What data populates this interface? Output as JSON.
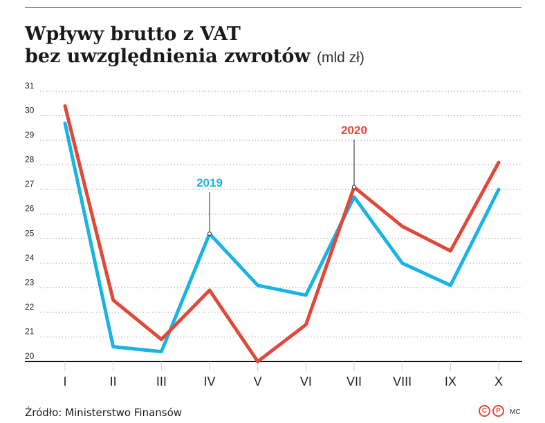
{
  "title": {
    "line1": "Wpływy brutto z VAT",
    "line2": "bez uwzględnienia zwrotów",
    "unit": "(mld zł)"
  },
  "source": "Źródło: Ministerstwo Finansów",
  "logos": {
    "copyright": "C",
    "p": "P"
  },
  "author": "MC",
  "chart_data": {
    "type": "line",
    "categories": [
      "I",
      "II",
      "III",
      "IV",
      "V",
      "VI",
      "VII",
      "VIII",
      "IX",
      "X"
    ],
    "yticks": [
      20,
      21,
      22,
      23,
      24,
      25,
      26,
      27,
      28,
      29,
      30,
      31
    ],
    "ylim": [
      20,
      31
    ],
    "grid": true,
    "series": [
      {
        "name": "2019",
        "color": "#1ab3e6",
        "values": [
          29.7,
          20.6,
          20.4,
          25.2,
          23.1,
          22.7,
          26.7,
          24.0,
          23.1,
          27.0
        ],
        "label_at": "IV"
      },
      {
        "name": "2020",
        "color": "#e0493a",
        "values": [
          30.4,
          22.5,
          20.9,
          22.9,
          20.0,
          21.5,
          27.1,
          25.5,
          24.5,
          28.1
        ],
        "label_at": "VII"
      }
    ]
  }
}
